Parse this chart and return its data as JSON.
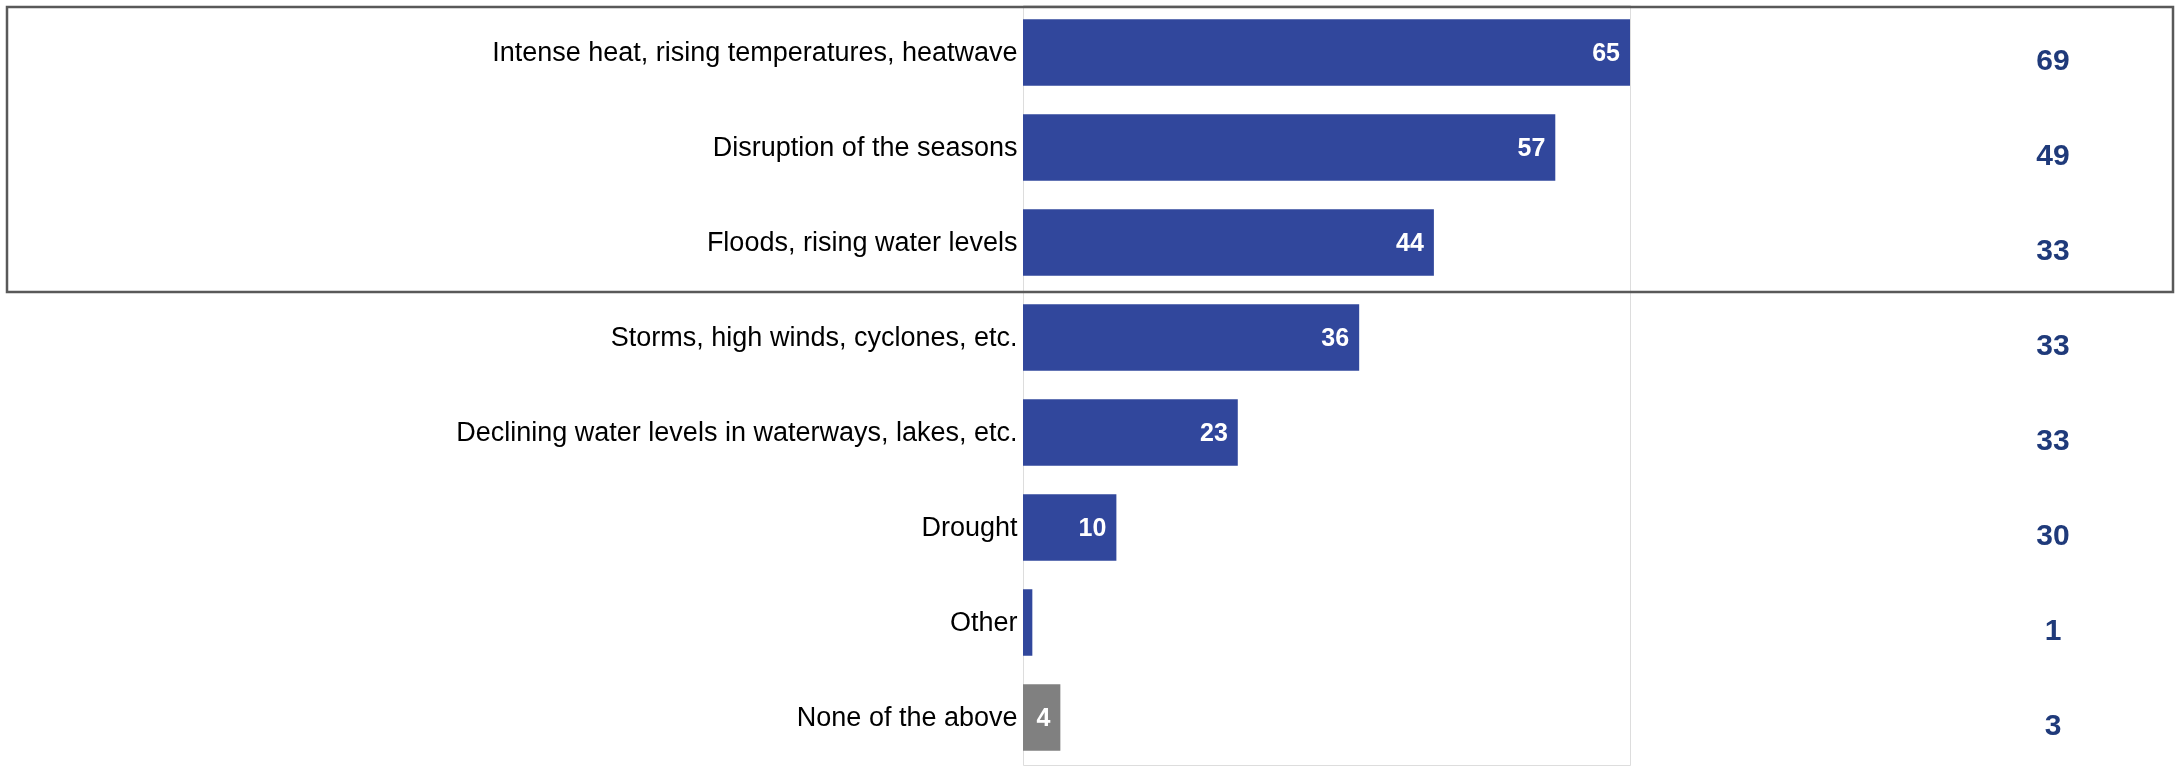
{
  "chart_data": {
    "type": "bar",
    "orientation": "horizontal",
    "categories": [
      "Intense heat, rising temperatures, heatwave",
      "Disruption of the seasons",
      "Floods, rising water levels",
      "Storms, high winds, cyclones, etc.",
      "Declining water levels in waterways, lakes, etc.",
      "Drought",
      "Other",
      "None of the above"
    ],
    "values": [
      65,
      57,
      44,
      36,
      23,
      10,
      1,
      4
    ],
    "value_labels": [
      "65",
      "57",
      "44",
      "36",
      "23",
      "10",
      null,
      "4"
    ],
    "colors": [
      "#31479c",
      "#31479c",
      "#31479c",
      "#31479c",
      "#31479c",
      "#31479c",
      "#31479c",
      "#808080"
    ],
    "annotations": [
      "69",
      "49",
      "33",
      "33",
      "33",
      "30",
      "1",
      "3"
    ]
  }
}
